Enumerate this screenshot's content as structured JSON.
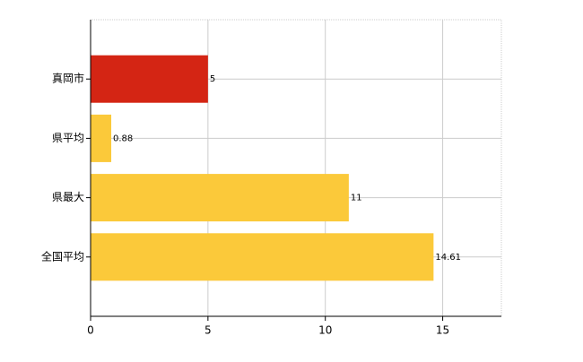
{
  "chart_data": {
    "type": "hbar",
    "categories": [
      "真岡市",
      "県平均",
      "県最大",
      "全国平均"
    ],
    "values": [
      5,
      0.88,
      11,
      14.61
    ],
    "colors": [
      "#d42514",
      "#fbc93a",
      "#fbc93a",
      "#fbc93a"
    ],
    "xlim": [
      0,
      17.5
    ],
    "xticks": [
      0,
      5,
      10,
      15
    ],
    "grid": true
  }
}
